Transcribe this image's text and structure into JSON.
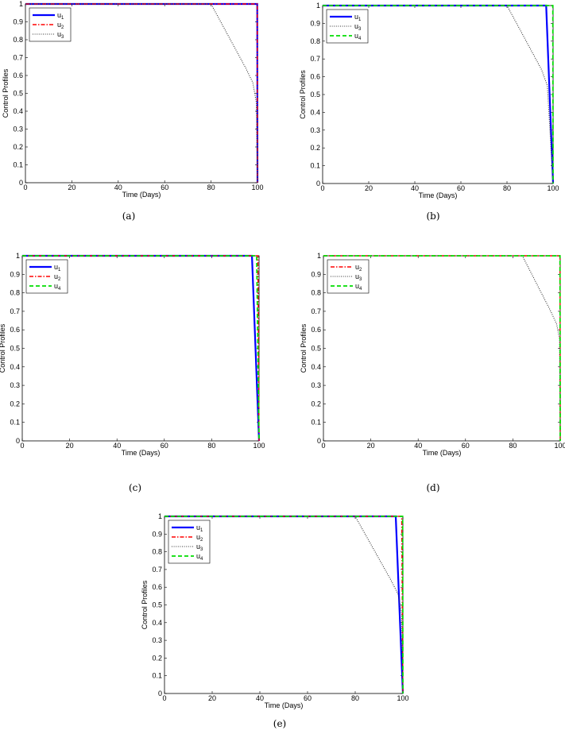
{
  "styles": {
    "u1": {
      "color": "#0000ff",
      "dash": "",
      "width": 2.2
    },
    "u2": {
      "color": "#ff0000",
      "dash": "5 2 1.5 2",
      "width": 1.4
    },
    "u3": {
      "color": "#333333",
      "dash": "1 1.6",
      "width": 1.1
    },
    "u4": {
      "color": "#00dd00",
      "dash": "5 3",
      "width": 1.8
    }
  },
  "chart_data": [
    {
      "type": "line",
      "caption": "(a)",
      "xlabel": "Time (Days)",
      "ylabel": "Control Profiles",
      "xlim": [
        0,
        100
      ],
      "ylim": [
        0,
        1
      ],
      "xticks": [
        "0",
        "20",
        "40",
        "60",
        "80",
        "100"
      ],
      "yticks": [
        "0",
        "0.1",
        "0.2",
        "0.3",
        "0.4",
        "0.5",
        "0.6",
        "0.7",
        "0.8",
        "0.9",
        "1"
      ],
      "legend": {
        "position": "top-left",
        "entries": [
          {
            "key": "u1",
            "base": "u",
            "sub": "1"
          },
          {
            "key": "u2",
            "base": "u",
            "sub": "2"
          },
          {
            "key": "u3",
            "base": "u",
            "sub": "3"
          }
        ]
      },
      "series": [
        {
          "key": "u1",
          "x": [
            0,
            99.9,
            100
          ],
          "y": [
            1,
            1,
            0
          ]
        },
        {
          "key": "u2",
          "x": [
            0,
            99.9,
            100
          ],
          "y": [
            1,
            1,
            0
          ]
        },
        {
          "key": "u3",
          "x": [
            0,
            80,
            85,
            90,
            95,
            98,
            99.5,
            100
          ],
          "y": [
            1,
            1,
            0.88,
            0.76,
            0.64,
            0.56,
            0.45,
            0
          ]
        }
      ]
    },
    {
      "type": "line",
      "caption": "(b)",
      "xlabel": "Time (Days)",
      "ylabel": "Control Profiles",
      "xlim": [
        0,
        100
      ],
      "ylim": [
        0,
        1
      ],
      "xticks": [
        "0",
        "20",
        "40",
        "60",
        "80",
        "100"
      ],
      "yticks": [
        "0",
        "0.1",
        "0.2",
        "0.3",
        "0.4",
        "0.5",
        "0.6",
        "0.7",
        "0.8",
        "0.9",
        "1"
      ],
      "legend": {
        "position": "top-left",
        "entries": [
          {
            "key": "u1",
            "base": "u",
            "sub": "1"
          },
          {
            "key": "u3",
            "base": "u",
            "sub": "3"
          },
          {
            "key": "u4",
            "base": "u",
            "sub": "4"
          }
        ]
      },
      "series": [
        {
          "key": "u1",
          "x": [
            0,
            97,
            100
          ],
          "y": [
            1,
            1,
            0
          ]
        },
        {
          "key": "u3",
          "x": [
            0,
            80,
            85,
            90,
            95,
            97.5,
            100
          ],
          "y": [
            1,
            1,
            0.88,
            0.76,
            0.64,
            0.55,
            0
          ]
        },
        {
          "key": "u4",
          "x": [
            0,
            99.9,
            100
          ],
          "y": [
            1,
            1,
            0
          ]
        }
      ]
    },
    {
      "type": "line",
      "caption": "(c)",
      "xlabel": "Time (Days)",
      "ylabel": "Control Profiles",
      "xlim": [
        0,
        100
      ],
      "ylim": [
        0,
        1
      ],
      "xticks": [
        "0",
        "20",
        "40",
        "60",
        "80",
        "100"
      ],
      "yticks": [
        "0",
        "0.1",
        "0.2",
        "0.3",
        "0.4",
        "0.5",
        "0.6",
        "0.7",
        "0.8",
        "0.9",
        "1"
      ],
      "legend": {
        "position": "top-left",
        "entries": [
          {
            "key": "u1",
            "base": "u",
            "sub": "1"
          },
          {
            "key": "u2",
            "base": "u",
            "sub": "2"
          },
          {
            "key": "u4",
            "base": "u",
            "sub": "4"
          }
        ]
      },
      "series": [
        {
          "key": "u1",
          "x": [
            0,
            97,
            100
          ],
          "y": [
            1,
            1,
            0
          ]
        },
        {
          "key": "u2",
          "x": [
            0,
            99.5,
            100
          ],
          "y": [
            1,
            1,
            0
          ]
        },
        {
          "key": "u4",
          "x": [
            0,
            99,
            100
          ],
          "y": [
            1,
            1,
            0
          ]
        }
      ]
    },
    {
      "type": "line",
      "caption": "(d)",
      "xlabel": "Time (Days)",
      "ylabel": "Control Profiles",
      "xlim": [
        0,
        100
      ],
      "ylim": [
        0,
        1
      ],
      "xticks": [
        "0",
        "20",
        "40",
        "60",
        "80",
        "100"
      ],
      "yticks": [
        "0",
        "0.1",
        "0.2",
        "0.3",
        "0.4",
        "0.5",
        "0.6",
        "0.7",
        "0.8",
        "0.9",
        "1"
      ],
      "legend": {
        "position": "top-left",
        "entries": [
          {
            "key": "u2",
            "base": "u",
            "sub": "2"
          },
          {
            "key": "u3",
            "base": "u",
            "sub": "3"
          },
          {
            "key": "u4",
            "base": "u",
            "sub": "4"
          }
        ]
      },
      "series": [
        {
          "key": "u2",
          "x": [
            0,
            99.9,
            100
          ],
          "y": [
            1,
            1,
            0
          ]
        },
        {
          "key": "u3",
          "x": [
            0,
            84,
            88,
            92,
            96,
            98.5,
            99.7,
            100
          ],
          "y": [
            1,
            1,
            0.9,
            0.8,
            0.7,
            0.63,
            0.55,
            0
          ]
        },
        {
          "key": "u4",
          "x": [
            0,
            99.9,
            100
          ],
          "y": [
            1,
            1,
            0
          ]
        }
      ]
    },
    {
      "type": "line",
      "caption": "(e)",
      "xlabel": "Time (Days)",
      "ylabel": "Control Profiles",
      "xlim": [
        0,
        100
      ],
      "ylim": [
        0,
        1
      ],
      "xticks": [
        "0",
        "20",
        "40",
        "60",
        "80",
        "100"
      ],
      "yticks": [
        "0",
        "0.1",
        "0.2",
        "0.3",
        "0.4",
        "0.5",
        "0.6",
        "0.7",
        "0.8",
        "0.9",
        "1"
      ],
      "legend": {
        "position": "top-left",
        "entries": [
          {
            "key": "u1",
            "base": "u",
            "sub": "1"
          },
          {
            "key": "u2",
            "base": "u",
            "sub": "2"
          },
          {
            "key": "u3",
            "base": "u",
            "sub": "3"
          },
          {
            "key": "u4",
            "base": "u",
            "sub": "4"
          }
        ]
      },
      "series": [
        {
          "key": "u1",
          "x": [
            0,
            97,
            100
          ],
          "y": [
            1,
            1,
            0
          ]
        },
        {
          "key": "u2",
          "x": [
            0,
            99.5,
            100
          ],
          "y": [
            1,
            1,
            0
          ]
        },
        {
          "key": "u3",
          "x": [
            0,
            80,
            85,
            90,
            95,
            98,
            99.5,
            100
          ],
          "y": [
            1,
            1,
            0.88,
            0.76,
            0.64,
            0.56,
            0.45,
            0
          ]
        },
        {
          "key": "u4",
          "x": [
            0,
            99.9,
            100
          ],
          "y": [
            1,
            1,
            0
          ]
        }
      ]
    }
  ]
}
